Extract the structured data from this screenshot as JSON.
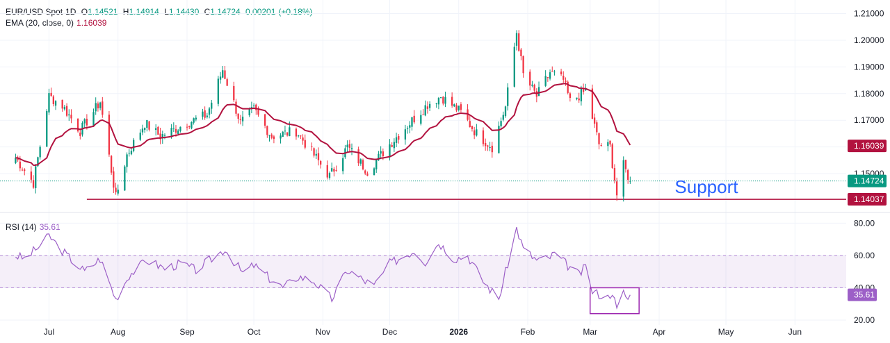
{
  "chart_data": [
    {
      "type": "candlestick",
      "symbol": "EUR/USD Spot",
      "interval": "1D",
      "ohlc_header": {
        "o_label": "O",
        "open": "1.14521",
        "h_label": "H",
        "high": "1.14914",
        "l_label": "L",
        "low": "1.14430",
        "c_label": "C",
        "close": "1.14724",
        "change": "0.00201",
        "change_pct": "(+0.18%)"
      },
      "ema": {
        "label": "EMA (20, close, 0)",
        "value": "1.16039"
      },
      "y_ticks": [
        "1.21000",
        "1.20000",
        "1.19000",
        "1.18000",
        "1.17000",
        "1.16000",
        "1.15000"
      ],
      "ylim": [
        1.137,
        1.213
      ],
      "price_badges": [
        {
          "value": "1.16039",
          "color": "#b2123f"
        },
        {
          "value": "1.14724",
          "color": "#089981"
        },
        {
          "value": "1.14037",
          "color": "#b2123f"
        }
      ],
      "support": {
        "label": "Support",
        "level": 1.14037,
        "color": "#b2123f",
        "text_color": "#2962ff"
      },
      "last_close": 1.14724,
      "colors": {
        "up": "#089981",
        "down": "#f23645",
        "ema": "#b2123f"
      },
      "waypoints": [
        [
          "2025-06-16",
          1.156
        ],
        [
          "2025-06-24",
          1.1465
        ],
        [
          "2025-07-01",
          1.179
        ],
        [
          "2025-07-07",
          1.1755
        ],
        [
          "2025-07-15",
          1.166
        ],
        [
          "2025-07-24",
          1.177
        ],
        [
          "2025-07-31",
          1.141
        ],
        [
          "2025-08-05",
          1.157
        ],
        [
          "2025-08-13",
          1.169
        ],
        [
          "2025-08-20",
          1.164
        ],
        [
          "2025-09-01",
          1.169
        ],
        [
          "2025-09-10",
          1.172
        ],
        [
          "2025-09-17",
          1.189
        ],
        [
          "2025-09-25",
          1.169
        ],
        [
          "2025-10-01",
          1.174
        ],
        [
          "2025-10-09",
          1.164
        ],
        [
          "2025-10-20",
          1.166
        ],
        [
          "2025-11-04",
          1.149
        ],
        [
          "2025-11-12",
          1.16
        ],
        [
          "2025-11-21",
          1.151
        ],
        [
          "2025-12-01",
          1.161
        ],
        [
          "2025-12-10",
          1.169
        ],
        [
          "2025-12-18",
          1.176
        ],
        [
          "2025-12-24",
          1.179
        ],
        [
          "2026-01-02",
          1.173
        ],
        [
          "2026-01-09",
          1.165
        ],
        [
          "2026-01-16",
          1.16
        ],
        [
          "2026-01-22",
          1.175
        ],
        [
          "2026-01-27",
          1.203
        ],
        [
          "2026-01-30",
          1.187
        ],
        [
          "2026-02-05",
          1.179
        ],
        [
          "2026-02-11",
          1.188
        ],
        [
          "2026-02-17",
          1.185
        ],
        [
          "2026-02-20",
          1.177
        ],
        [
          "2026-02-27",
          1.181
        ],
        [
          "2026-03-05",
          1.161
        ],
        [
          "2026-03-10",
          1.16
        ],
        [
          "2026-03-13",
          1.142
        ],
        [
          "2026-03-16",
          1.153
        ],
        [
          "2026-03-19",
          1.1472
        ]
      ],
      "x_domain": [
        "2025-06-09",
        "2026-06-24"
      ]
    },
    {
      "type": "line",
      "indicator": "RSI",
      "label": "RSI (14)",
      "current_value": "35.61",
      "y_ticks": [
        "80.00",
        "60.00",
        "40.00",
        "20.00"
      ],
      "ylim": [
        17,
        84
      ],
      "band": [
        40,
        60
      ],
      "color": "#9c5fc7",
      "waypoints": [
        [
          "2025-06-16",
          60
        ],
        [
          "2025-06-20",
          58
        ],
        [
          "2025-06-27",
          66
        ],
        [
          "2025-07-01",
          72
        ],
        [
          "2025-07-09",
          60
        ],
        [
          "2025-07-17",
          50
        ],
        [
          "2025-07-24",
          58
        ],
        [
          "2025-07-31",
          33
        ],
        [
          "2025-08-06",
          48
        ],
        [
          "2025-08-14",
          57
        ],
        [
          "2025-08-22",
          52
        ],
        [
          "2025-08-29",
          55
        ],
        [
          "2025-09-05",
          51
        ],
        [
          "2025-09-12",
          58
        ],
        [
          "2025-09-18",
          64
        ],
        [
          "2025-09-26",
          49
        ],
        [
          "2025-10-01",
          54
        ],
        [
          "2025-10-08",
          46
        ],
        [
          "2025-10-14",
          40
        ],
        [
          "2025-10-21",
          47
        ],
        [
          "2025-10-28",
          44
        ],
        [
          "2025-11-05",
          33
        ],
        [
          "2025-11-12",
          51
        ],
        [
          "2025-11-19",
          45
        ],
        [
          "2025-11-24",
          41
        ],
        [
          "2025-12-01",
          55
        ],
        [
          "2025-12-08",
          60
        ],
        [
          "2025-12-12",
          63
        ],
        [
          "2025-12-17",
          56
        ],
        [
          "2025-12-23",
          68
        ],
        [
          "2025-12-30",
          58
        ],
        [
          "2026-01-05",
          60
        ],
        [
          "2026-01-12",
          44
        ],
        [
          "2026-01-19",
          33
        ],
        [
          "2026-01-23",
          55
        ],
        [
          "2026-01-27",
          77
        ],
        [
          "2026-01-30",
          64
        ],
        [
          "2026-02-05",
          57
        ],
        [
          "2026-02-10",
          58
        ],
        [
          "2026-02-13",
          61
        ],
        [
          "2026-02-18",
          55
        ],
        [
          "2026-02-24",
          48
        ],
        [
          "2026-02-27",
          53
        ],
        [
          "2026-03-02",
          38
        ],
        [
          "2026-03-05",
          36
        ],
        [
          "2026-03-09",
          34
        ],
        [
          "2026-03-11",
          38
        ],
        [
          "2026-03-13",
          26
        ],
        [
          "2026-03-16",
          37
        ],
        [
          "2026-03-18",
          33
        ],
        [
          "2026-03-19",
          35.61
        ]
      ],
      "highlight_box": {
        "from": "2026-03-01",
        "to": "2026-03-23",
        "ymin": 24,
        "ymax": 40,
        "color": "#9c27b0"
      }
    }
  ],
  "x_axis": {
    "labels": [
      {
        "date": "2025-07-01",
        "text": "Jul"
      },
      {
        "date": "2025-08-01",
        "text": "Aug"
      },
      {
        "date": "2025-09-01",
        "text": "Sep"
      },
      {
        "date": "2025-10-01",
        "text": "Oct"
      },
      {
        "date": "2025-11-01",
        "text": "Nov"
      },
      {
        "date": "2025-12-01",
        "text": "Dec"
      },
      {
        "date": "2026-01-01",
        "text": "2026",
        "bold": true
      },
      {
        "date": "2026-02-01",
        "text": "Feb"
      },
      {
        "date": "2026-03-01",
        "text": "Mar"
      },
      {
        "date": "2026-04-01",
        "text": "Apr"
      },
      {
        "date": "2026-05-01",
        "text": "May"
      },
      {
        "date": "2026-06-01",
        "text": "Jun"
      }
    ]
  }
}
